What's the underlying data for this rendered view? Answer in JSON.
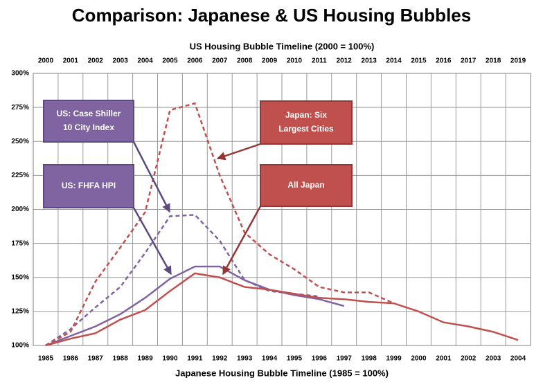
{
  "chart_data": {
    "type": "line",
    "title": "Comparison: Japanese & US Housing Bubbles",
    "x2_label": "US Housing Bubble Timeline (2000 = 100%)",
    "x_label": "Japanese Housing Bubble Timeline (1985 = 100%)",
    "categories": [
      "1985",
      "1986",
      "1987",
      "1988",
      "1989",
      "1990",
      "1991",
      "1992",
      "1993",
      "1994",
      "1995",
      "1996",
      "1997",
      "1998",
      "1999",
      "2000",
      "2001",
      "2002",
      "2003",
      "2004"
    ],
    "top_categories": [
      "2000",
      "2001",
      "2002",
      "2003",
      "2004",
      "2005",
      "2006",
      "2007",
      "2008",
      "2009",
      "2010",
      "2011",
      "2012",
      "2013",
      "2014",
      "2015",
      "2016",
      "2017",
      "2018",
      "2019"
    ],
    "ylim": [
      100,
      300
    ],
    "yticks": [
      {
        "value": 100,
        "label": "100%"
      },
      {
        "value": 125,
        "label": "125%"
      },
      {
        "value": 150,
        "label": "150%"
      },
      {
        "value": 175,
        "label": "175%"
      },
      {
        "value": 200,
        "label": "200%"
      },
      {
        "value": 225,
        "label": "225%"
      },
      {
        "value": 250,
        "label": "250%"
      },
      {
        "value": 275,
        "label": "275%"
      },
      {
        "value": 300,
        "label": "300%"
      }
    ],
    "grid": true,
    "series": [
      {
        "name": "US: Case Shiller 10 City Index",
        "color": "#8064a2",
        "dashed": true,
        "axis": "x2",
        "values": [
          100,
          112,
          128,
          143,
          168,
          195,
          196,
          177,
          148,
          140,
          138,
          136,
          null,
          null,
          null,
          null,
          null,
          null,
          null,
          null
        ]
      },
      {
        "name": "US: FHFA HPI",
        "color": "#8064a2",
        "dashed": false,
        "axis": "x2",
        "values": [
          100,
          107,
          114,
          123,
          135,
          149,
          158,
          158,
          148,
          141,
          137,
          134,
          129,
          null,
          null,
          null,
          null,
          null,
          null,
          null
        ]
      },
      {
        "name": "Japan: Six Largest Cities",
        "color": "#c0504d",
        "dashed": true,
        "axis": "x",
        "values": [
          100,
          110,
          147,
          172,
          198,
          273,
          278,
          225,
          183,
          167,
          156,
          143,
          139,
          139,
          131,
          null,
          null,
          null,
          null,
          null
        ]
      },
      {
        "name": "All Japan",
        "color": "#c0504d",
        "dashed": false,
        "axis": "x",
        "values": [
          100,
          105,
          109,
          119,
          126,
          140,
          153,
          150,
          143,
          141,
          138,
          135,
          134,
          132,
          131,
          125,
          117,
          114,
          110,
          104
        ]
      }
    ],
    "annotations": [
      {
        "lines": [
          "US: Case Shiller",
          "10 City Index"
        ],
        "color": "#8064a2"
      },
      {
        "lines": [
          "US: FHFA HPI"
        ],
        "color": "#8064a2"
      },
      {
        "lines": [
          "Japan: Six",
          "Largest Cities"
        ],
        "color": "#c0504d"
      },
      {
        "lines": [
          "All Japan"
        ],
        "color": "#c0504d"
      }
    ]
  }
}
